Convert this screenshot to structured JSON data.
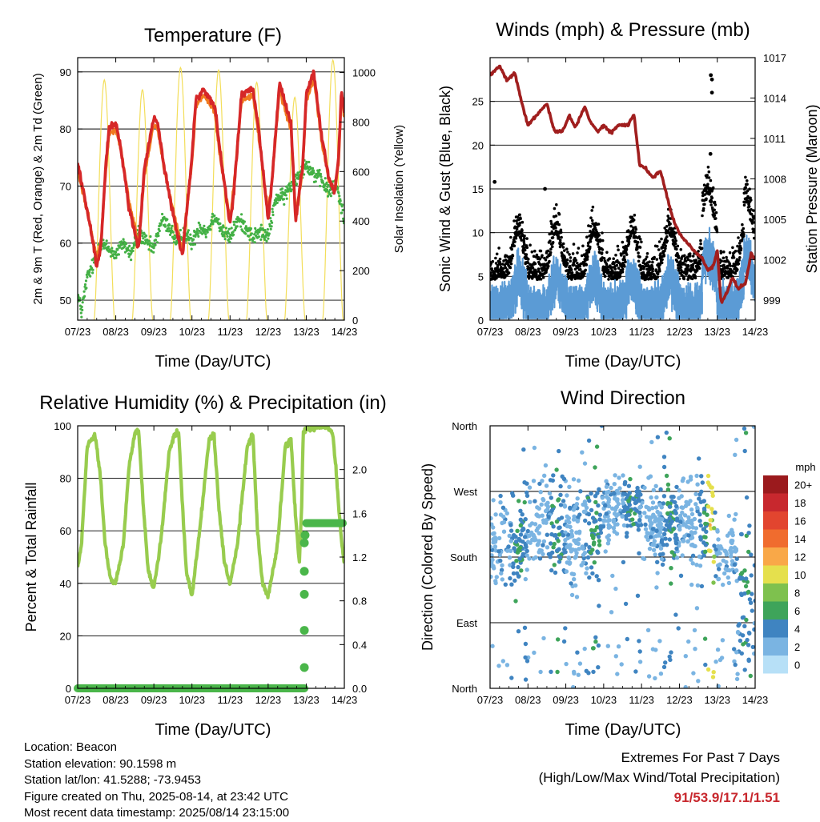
{
  "colors": {
    "temp2m": "#d62728",
    "temp9m": "#f07a20",
    "dewpoint": "#43b045",
    "solar": "#f3de5a",
    "pressure": "#a01e1e",
    "gust": "#000000",
    "wind": "#5b9bd5",
    "rh": "#98cc4e",
    "rain": "#4ab64a",
    "extremes": "#c8282e"
  },
  "info": {
    "location": "Location: Beacon",
    "elevation": "Station elevation: 90.1598 m",
    "latlon": "Station lat/lon: 41.5288; -73.9453",
    "created": "Figure created on Thu, 2025-08-14, at 23:42 UTC",
    "recent": "Most recent data timestamp: 2025/08/14 23:15:00"
  },
  "extremes": {
    "title": "Extremes For Past 7 Days",
    "subtitle": "(High/Low/Max Wind/Total Precipitation)",
    "values": "91/53.9/17.1/1.51"
  },
  "chart_data": [
    {
      "type": "line",
      "id": "temperature",
      "title": "Temperature (F)",
      "xlabel": "Time (Day/UTC)",
      "ylabel": "2m & 9m T (Red, Orange) & 2m Td (Green)",
      "ylabel_right": "Solar Insolation (Yellow)",
      "x_ticks": [
        "07/23",
        "08/23",
        "09/23",
        "10/23",
        "11/23",
        "12/23",
        "13/23",
        "14/23"
      ],
      "xlim": [
        0,
        7
      ],
      "ylim": [
        46.5,
        92.5
      ],
      "y_ticks": [
        50,
        60,
        70,
        80,
        90
      ],
      "ylim_right": [
        0,
        1060
      ],
      "y_ticks_right": [
        0,
        200,
        400,
        600,
        800,
        1000
      ],
      "grid": "horizontal",
      "series": [
        {
          "key": "temp2m",
          "x": [
            0.0,
            0.12,
            0.3,
            0.5,
            0.62,
            0.72,
            0.82,
            1.0,
            1.15,
            1.35,
            1.6,
            1.75,
            2.0,
            2.1,
            2.3,
            2.6,
            2.75,
            3.0,
            3.1,
            3.3,
            3.6,
            3.72,
            4.0,
            4.1,
            4.3,
            4.6,
            4.75,
            5.0,
            5.1,
            5.3,
            5.6,
            5.72,
            5.9,
            6.0,
            6.2,
            6.4,
            6.6,
            6.75,
            6.85,
            6.92,
            7.0
          ],
          "values": [
            74,
            70,
            64,
            56,
            60,
            72,
            80,
            81,
            76,
            66,
            59,
            73,
            82,
            81,
            72,
            62,
            58,
            75,
            85,
            87,
            84,
            77,
            63,
            69,
            86,
            87,
            80,
            64,
            71,
            88,
            81,
            64,
            73,
            86,
            90,
            79,
            71,
            69,
            75,
            87,
            83
          ]
        },
        {
          "key": "temp9m",
          "x": [
            0.0,
            0.12,
            0.3,
            0.5,
            0.62,
            0.72,
            0.82,
            1.0,
            1.15,
            1.35,
            1.6,
            1.75,
            2.0,
            2.1,
            2.3,
            2.6,
            2.75,
            3.0,
            3.1,
            3.3,
            3.6,
            3.72,
            4.0,
            4.1,
            4.3,
            4.6,
            4.75,
            5.0,
            5.1,
            5.3,
            5.6,
            5.72,
            5.9,
            6.0,
            6.2,
            6.4,
            6.6,
            6.75,
            6.85,
            6.92,
            7.0
          ],
          "values": [
            73,
            69.5,
            64,
            57,
            61,
            71,
            79,
            80,
            76,
            67,
            60,
            72,
            81,
            80,
            72,
            63,
            59,
            74,
            84,
            86,
            83,
            76,
            64,
            70,
            85,
            86,
            79,
            65,
            71,
            87,
            80,
            65,
            72,
            85,
            89,
            78,
            71,
            69,
            74,
            86,
            82
          ]
        },
        {
          "key": "dewpoint",
          "x": [
            0.0,
            0.1,
            0.25,
            0.4,
            0.6,
            0.8,
            1.0,
            1.2,
            1.4,
            1.6,
            1.8,
            2.0,
            2.2,
            2.4,
            2.6,
            2.8,
            3.0,
            3.2,
            3.4,
            3.6,
            3.8,
            4.0,
            4.2,
            4.4,
            4.6,
            4.8,
            5.0,
            5.2,
            5.4,
            5.6,
            5.8,
            6.0,
            6.2,
            6.4,
            6.6,
            6.8,
            7.0
          ],
          "values": [
            51,
            48,
            54,
            56,
            60,
            59,
            58,
            60,
            58,
            62,
            60,
            59,
            64,
            63,
            60,
            62,
            60,
            63,
            62,
            65,
            62,
            61,
            64,
            63,
            61,
            62,
            61,
            68,
            68,
            70,
            72,
            74,
            72,
            71,
            69,
            70,
            64
          ]
        },
        {
          "key": "solar",
          "peak_days": [
            0.7,
            1.7,
            2.7,
            3.7,
            4.7,
            5.7,
            6.7
          ],
          "peak_values": [
            970,
            930,
            1020,
            1010,
            960,
            900,
            1050
          ],
          "half_width_days": 0.27
        }
      ]
    },
    {
      "type": "scatter",
      "id": "winds",
      "title": "Winds (mph) & Pressure (mb)",
      "xlabel": "Time (Day/UTC)",
      "ylabel": "Sonic Wind & Gust (Blue, Black)",
      "ylabel_right": "Station Pressure (Maroon)",
      "x_ticks": [
        "07/23",
        "08/23",
        "09/23",
        "10/23",
        "11/23",
        "12/23",
        "13/23",
        "14/23"
      ],
      "xlim": [
        0,
        7
      ],
      "ylim": [
        0,
        30
      ],
      "y_ticks": [
        0,
        5,
        10,
        15,
        20,
        25
      ],
      "ylim_right": [
        997.5,
        1017
      ],
      "y_ticks_right": [
        999,
        1002,
        1005,
        1008,
        1011,
        1014,
        1017
      ],
      "grid": "horizontal",
      "series": [
        {
          "key": "pressure",
          "x": [
            0.0,
            0.25,
            0.45,
            0.65,
            0.85,
            1.0,
            1.25,
            1.5,
            1.7,
            1.9,
            2.1,
            2.25,
            2.5,
            2.65,
            2.85,
            3.0,
            3.2,
            3.4,
            3.65,
            3.8,
            3.95,
            4.1,
            4.3,
            4.5,
            4.8,
            5.0,
            5.2,
            5.4,
            5.6,
            5.75,
            5.9,
            6.0,
            6.1,
            6.25,
            6.4,
            6.55,
            6.75,
            6.9,
            7.0
          ],
          "values": [
            1015.7,
            1016.4,
            1015.3,
            1015.9,
            1013.5,
            1012.0,
            1012.8,
            1013.6,
            1011.5,
            1011.5,
            1012.7,
            1011.8,
            1013.4,
            1012.2,
            1011.5,
            1012.0,
            1011.4,
            1012.0,
            1012.0,
            1012.8,
            1009.0,
            1008.8,
            1008.1,
            1008.6,
            1005.3,
            1003.9,
            1003.3,
            1002.6,
            1002.1,
            1001.2,
            1001.5,
            1002.8,
            998.8,
            999.5,
            1000.7,
            999.8,
            1000.3,
            1002.5,
            1002.0
          ]
        },
        {
          "key": "gust",
          "outliers": [
            {
              "x": 5.83,
              "y": 28
            },
            {
              "x": 5.86,
              "y": 27.5
            },
            {
              "x": 5.86,
              "y": 26
            },
            {
              "x": 0.12,
              "y": 15.8
            },
            {
              "x": 1.45,
              "y": 15
            },
            {
              "x": 5.82,
              "y": 19
            }
          ]
        },
        {
          "key": "wind"
        }
      ]
    },
    {
      "type": "line",
      "id": "humidity",
      "title": "Relative Humidity (%) & Precipitation (in)",
      "xlabel": "Time (Day/UTC)",
      "ylabel": "Percent & Total Rainfall",
      "x_ticks": [
        "07/23",
        "08/23",
        "09/23",
        "10/23",
        "11/23",
        "12/23",
        "13/23",
        "14/23"
      ],
      "xlim": [
        0,
        7
      ],
      "ylim": [
        0,
        100
      ],
      "y_ticks": [
        0,
        20,
        40,
        60,
        80,
        100
      ],
      "ylim_right": [
        0,
        2.4
      ],
      "y_ticks_right": [
        "0.0",
        "0.4",
        "0.8",
        "1.2",
        "1.6",
        "2.0"
      ],
      "grid": "horizontal",
      "series": [
        {
          "key": "rh",
          "x": [
            0.0,
            0.1,
            0.25,
            0.45,
            0.6,
            0.72,
            0.85,
            1.0,
            1.2,
            1.35,
            1.5,
            1.6,
            1.72,
            1.85,
            2.0,
            2.2,
            2.4,
            2.55,
            2.65,
            2.75,
            2.85,
            3.0,
            3.2,
            3.45,
            3.58,
            3.7,
            3.85,
            4.0,
            4.2,
            4.45,
            4.6,
            4.72,
            4.85,
            5.0,
            5.25,
            5.45,
            5.6,
            5.72,
            5.82,
            5.88,
            5.92,
            6.0,
            6.5,
            6.7,
            6.8,
            6.9,
            7.0
          ],
          "values": [
            46,
            55,
            92,
            97,
            80,
            55,
            42,
            40,
            55,
            85,
            97,
            98,
            70,
            45,
            38,
            58,
            90,
            97,
            98,
            70,
            45,
            35,
            60,
            95,
            97,
            70,
            48,
            40,
            55,
            92,
            97,
            60,
            40,
            35,
            55,
            92,
            95,
            65,
            48,
            70,
            97,
            99,
            100,
            97,
            80,
            60,
            48
          ]
        },
        {
          "key": "rain",
          "baseline_end_x": 5.95,
          "jump_points": [
            {
              "x": 5.95,
              "y": 0.19
            },
            {
              "x": 5.95,
              "y": 0.53
            },
            {
              "x": 5.95,
              "y": 0.86
            },
            {
              "x": 5.95,
              "y": 1.07
            },
            {
              "x": 5.95,
              "y": 1.33
            },
            {
              "x": 5.97,
              "y": 1.4
            }
          ],
          "plateau": 1.51
        }
      ]
    },
    {
      "type": "scatter",
      "id": "direction",
      "title": "Wind Direction",
      "xlabel": "Time (Day/UTC)",
      "ylabel": "Direction (Colored By Speed)",
      "x_ticks": [
        "07/23",
        "08/23",
        "09/23",
        "10/23",
        "11/23",
        "12/23",
        "13/23",
        "14/23"
      ],
      "xlim": [
        0,
        7
      ],
      "ylim": [
        0,
        360
      ],
      "y_ticks": [
        "North",
        "East",
        "South",
        "West",
        "North"
      ],
      "grid": "horizontal",
      "colorbar": {
        "label": "mph",
        "ticks": [
          "20+",
          "18",
          "16",
          "14",
          "12",
          "10",
          "8",
          "6",
          "4",
          "2",
          "0"
        ],
        "colors": [
          "#9b1a1d",
          "#c8282e",
          "#e2452f",
          "#f06c2e",
          "#f9a848",
          "#e5e04d",
          "#7ec14e",
          "#3ea45a",
          "#3f84c1",
          "#7ab4e2",
          "#b7e0f7"
        ]
      }
    }
  ]
}
